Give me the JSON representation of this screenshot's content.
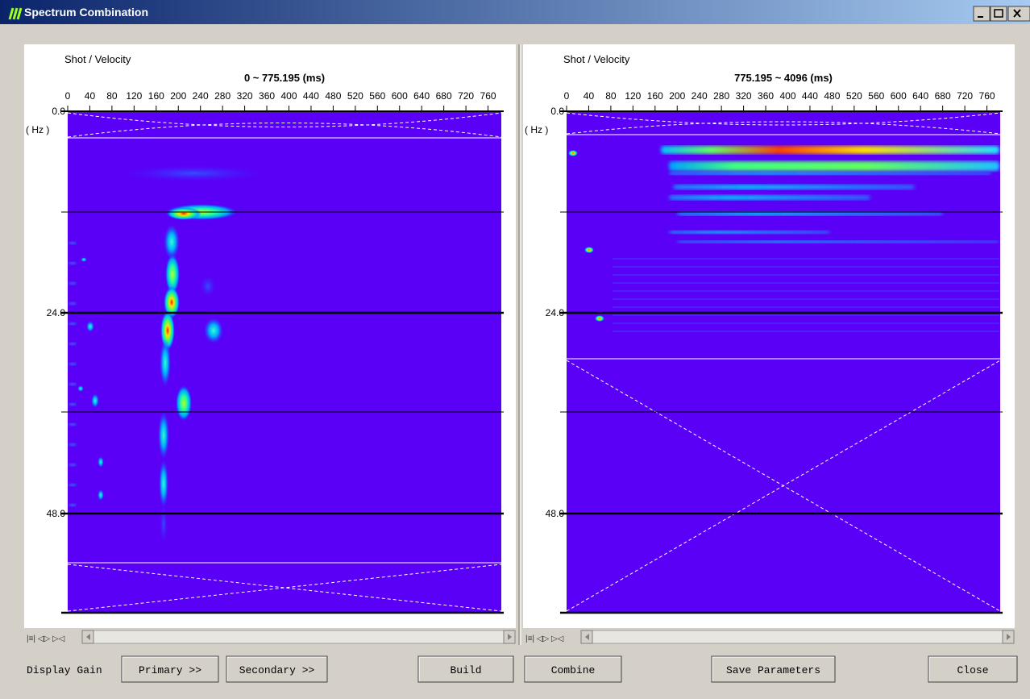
{
  "window": {
    "title": "Spectrum Combination"
  },
  "panels": [
    {
      "axis_title": "Shot / Velocity",
      "range_label": "0 ~ 775.195 (ms)",
      "x_ticks": [
        "0",
        "40",
        "80",
        "120",
        "160",
        "200",
        "240",
        "280",
        "320",
        "360",
        "400",
        "440",
        "480",
        "520",
        "560",
        "600",
        "640",
        "680",
        "720",
        "760"
      ],
      "y_ticks": [
        "0.0",
        "24.0",
        "48.0"
      ],
      "y_unit": "( Hz )"
    },
    {
      "axis_title": "Shot / Velocity",
      "range_label": "775.195 ~ 4096 (ms)",
      "x_ticks": [
        "0",
        "40",
        "80",
        "120",
        "160",
        "200",
        "240",
        "280",
        "320",
        "360",
        "400",
        "440",
        "480",
        "520",
        "560",
        "600",
        "640",
        "680",
        "720",
        "760"
      ],
      "y_ticks": [
        "0.0",
        "24.0",
        "48.0"
      ],
      "y_unit": "( Hz )"
    }
  ],
  "controls": {
    "display_gain_label": "Display Gain",
    "buttons": [
      "Primary >>",
      "Secondary >>",
      "Build",
      "Combine",
      "Save Parameters",
      "Close"
    ]
  }
}
